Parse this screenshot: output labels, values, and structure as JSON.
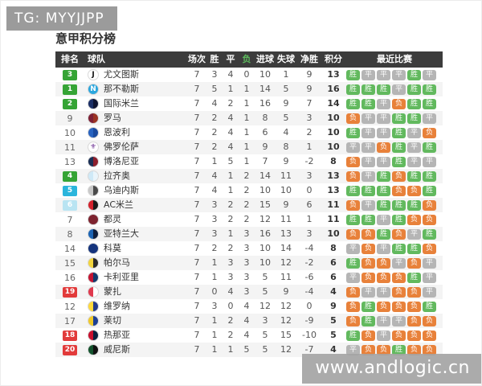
{
  "header": {
    "tag": "TG: MYYJJPP"
  },
  "title": "意甲积分榜",
  "watermark": "www.andlogic.cn",
  "table": {
    "columns": {
      "rank": "排名",
      "team": "球队",
      "played": "场次",
      "win": "胜",
      "draw": "平",
      "loss": "负",
      "gf": "进球",
      "ga": "失球",
      "gd": "净胜球",
      "pts": "积分",
      "recent": "最近比赛"
    },
    "result_colors": {
      "win": "#62b95e",
      "draw": "#b5b5b5",
      "loss": "#e8813a"
    },
    "result_keys": {
      "胜": "win",
      "平": "draw",
      "负": "loss"
    },
    "rank_colors": {
      "green": "#35a435",
      "cyan": "#2bb5dc",
      "pale": "#b9e4f2",
      "red": "#e23b3b",
      "none": ""
    },
    "rows": [
      {
        "rank": 3,
        "rank_style": "green",
        "team": "尤文图斯",
        "logo": {
          "c1": "#ffffff",
          "c2": "#ffffff",
          "letter": "J",
          "lc": "#111111"
        },
        "played": 7,
        "win": 3,
        "draw": 4,
        "loss": 0,
        "gf": 10,
        "ga": 1,
        "gd": 9,
        "pts": 13,
        "recent": [
          "胜",
          "平",
          "平",
          "平",
          "胜",
          "平"
        ]
      },
      {
        "rank": 1,
        "rank_style": "green",
        "team": "那不勒斯",
        "logo": {
          "c1": "#2ba7de",
          "c2": "#2ba7de",
          "letter": "N",
          "lc": "#ffffff"
        },
        "played": 7,
        "win": 5,
        "draw": 1,
        "loss": 1,
        "gf": 14,
        "ga": 5,
        "gd": 9,
        "pts": 16,
        "recent": [
          "胜",
          "胜",
          "胜",
          "平",
          "胜",
          "胜"
        ]
      },
      {
        "rank": 2,
        "rank_style": "green",
        "team": "国际米兰",
        "logo": {
          "c1": "#1b2f66",
          "c2": "#0e1430",
          "letter": "",
          "lc": "#ffffff"
        },
        "played": 7,
        "win": 4,
        "draw": 2,
        "loss": 1,
        "gf": 16,
        "ga": 9,
        "gd": 7,
        "pts": 14,
        "recent": [
          "胜",
          "胜",
          "平",
          "负",
          "胜",
          "胜"
        ]
      },
      {
        "rank": 9,
        "rank_style": "none",
        "team": "罗马",
        "logo": {
          "c1": "#7d2035",
          "c2": "#9a3324",
          "letter": "",
          "lc": "#ffffff"
        },
        "played": 7,
        "win": 2,
        "draw": 4,
        "loss": 1,
        "gf": 8,
        "ga": 5,
        "gd": 3,
        "pts": 10,
        "recent": [
          "负",
          "平",
          "平",
          "胜",
          "胜",
          "平"
        ]
      },
      {
        "rank": 10,
        "rank_style": "none",
        "team": "恩波利",
        "logo": {
          "c1": "#2863c0",
          "c2": "#1a4a9e",
          "letter": "",
          "lc": "#ffffff"
        },
        "played": 7,
        "win": 2,
        "draw": 4,
        "loss": 1,
        "gf": 6,
        "ga": 4,
        "gd": 2,
        "pts": 10,
        "recent": [
          "胜",
          "平",
          "平",
          "胜",
          "平",
          "负"
        ]
      },
      {
        "rank": 11,
        "rank_style": "none",
        "team": "佛罗伦萨",
        "logo": {
          "c1": "#ffffff",
          "c2": "#ffffff",
          "letter": "⚜",
          "lc": "#6a2d91"
        },
        "played": 7,
        "win": 2,
        "draw": 4,
        "loss": 1,
        "gf": 9,
        "ga": 8,
        "gd": 1,
        "pts": 10,
        "recent": [
          "平",
          "平",
          "负",
          "胜",
          "平",
          "胜"
        ]
      },
      {
        "rank": 13,
        "rank_style": "none",
        "team": "博洛尼亚",
        "logo": {
          "c1": "#1a2f55",
          "c2": "#8d1f2d",
          "letter": "",
          "lc": "#ffffff"
        },
        "played": 7,
        "win": 1,
        "draw": 5,
        "loss": 1,
        "gf": 7,
        "ga": 9,
        "gd": -2,
        "pts": 8,
        "recent": [
          "负",
          "平",
          "平",
          "胜",
          "平",
          "平"
        ]
      },
      {
        "rank": 4,
        "rank_style": "green",
        "team": "拉齐奥",
        "logo": {
          "c1": "#cfe9f7",
          "c2": "#eaf5fb",
          "letter": "",
          "lc": "#1b5e9e"
        },
        "played": 7,
        "win": 4,
        "draw": 1,
        "loss": 2,
        "gf": 14,
        "ga": 11,
        "gd": 3,
        "pts": 13,
        "recent": [
          "负",
          "平",
          "胜",
          "负",
          "胜",
          "胜"
        ]
      },
      {
        "rank": 5,
        "rank_style": "cyan",
        "team": "乌迪内斯",
        "logo": {
          "c1": "#c8c8c8",
          "c2": "#4a4a4a",
          "letter": "",
          "lc": "#ffffff"
        },
        "played": 7,
        "win": 4,
        "draw": 1,
        "loss": 2,
        "gf": 10,
        "ga": 10,
        "gd": 0,
        "pts": 13,
        "recent": [
          "胜",
          "胜",
          "胜",
          "负",
          "负",
          "胜"
        ]
      },
      {
        "rank": 6,
        "rank_style": "pale",
        "team": "AC米兰",
        "logo": {
          "c1": "#d3212c",
          "c2": "#1a1a1a",
          "letter": "",
          "lc": "#ffffff"
        },
        "played": 7,
        "win": 3,
        "draw": 2,
        "loss": 2,
        "gf": 15,
        "ga": 9,
        "gd": 6,
        "pts": 11,
        "recent": [
          "负",
          "平",
          "胜",
          "胜",
          "胜",
          "负"
        ]
      },
      {
        "rank": 7,
        "rank_style": "none",
        "team": "都灵",
        "logo": {
          "c1": "#7e2430",
          "c2": "#7e2430",
          "letter": "",
          "lc": "#ffffff"
        },
        "played": 7,
        "win": 3,
        "draw": 2,
        "loss": 2,
        "gf": 12,
        "ga": 11,
        "gd": 1,
        "pts": 11,
        "recent": [
          "胜",
          "胜",
          "平",
          "胜",
          "负",
          "负"
        ]
      },
      {
        "rank": 8,
        "rank_style": "none",
        "team": "亚特兰大",
        "logo": {
          "c1": "#1c64b4",
          "c2": "#0e1e3c",
          "letter": "",
          "lc": "#ffffff"
        },
        "played": 7,
        "win": 3,
        "draw": 1,
        "loss": 3,
        "gf": 16,
        "ga": 13,
        "gd": 3,
        "pts": 10,
        "recent": [
          "负",
          "负",
          "胜",
          "负",
          "平",
          "胜"
        ]
      },
      {
        "rank": 14,
        "rank_style": "none",
        "team": "科莫",
        "logo": {
          "c1": "#14337c",
          "c2": "#14337c",
          "letter": "",
          "lc": "#ffffff"
        },
        "played": 7,
        "win": 2,
        "draw": 2,
        "loss": 3,
        "gf": 10,
        "ga": 14,
        "gd": -4,
        "pts": 8,
        "recent": [
          "平",
          "负",
          "平",
          "胜",
          "胜",
          "负"
        ]
      },
      {
        "rank": 15,
        "rank_style": "none",
        "team": "帕尔马",
        "logo": {
          "c1": "#f2d43c",
          "c2": "#2a2a2a",
          "letter": "",
          "lc": "#ffffff"
        },
        "played": 7,
        "win": 1,
        "draw": 3,
        "loss": 3,
        "gf": 10,
        "ga": 12,
        "gd": -2,
        "pts": 6,
        "recent": [
          "胜",
          "负",
          "负",
          "平",
          "负",
          "平"
        ]
      },
      {
        "rank": 16,
        "rank_style": "none",
        "team": "卡利亚里",
        "logo": {
          "c1": "#c31432",
          "c2": "#123a6d",
          "letter": "",
          "lc": "#ffffff"
        },
        "played": 7,
        "win": 1,
        "draw": 3,
        "loss": 3,
        "gf": 5,
        "ga": 11,
        "gd": -6,
        "pts": 6,
        "recent": [
          "平",
          "负",
          "负",
          "负",
          "胜",
          "平"
        ]
      },
      {
        "rank": 19,
        "rank_style": "red",
        "team": "蒙扎",
        "logo": {
          "c1": "#e03a4e",
          "c2": "#ffffff",
          "letter": "",
          "lc": "#ffffff"
        },
        "played": 7,
        "win": 0,
        "draw": 4,
        "loss": 3,
        "gf": 5,
        "ga": 9,
        "gd": -4,
        "pts": 4,
        "recent": [
          "负",
          "平",
          "平",
          "负",
          "负",
          "平"
        ]
      },
      {
        "rank": 12,
        "rank_style": "none",
        "team": "维罗纳",
        "logo": {
          "c1": "#ffd93b",
          "c2": "#243b8c",
          "letter": "",
          "lc": "#ffffff"
        },
        "played": 7,
        "win": 3,
        "draw": 0,
        "loss": 4,
        "gf": 12,
        "ga": 12,
        "gd": 0,
        "pts": 9,
        "recent": [
          "负",
          "胜",
          "负",
          "负",
          "负",
          "胜"
        ]
      },
      {
        "rank": 17,
        "rank_style": "none",
        "team": "莱切",
        "logo": {
          "c1": "#f0c929",
          "c2": "#1c3f94",
          "letter": "",
          "lc": "#ffffff"
        },
        "played": 7,
        "win": 1,
        "draw": 2,
        "loss": 4,
        "gf": 3,
        "ga": 12,
        "gd": -9,
        "pts": 5,
        "recent": [
          "负",
          "胜",
          "平",
          "平",
          "负",
          "负"
        ]
      },
      {
        "rank": 18,
        "rank_style": "red",
        "team": "热那亚",
        "logo": {
          "c1": "#c8102e",
          "c2": "#0a2240",
          "letter": "",
          "lc": "#ffffff"
        },
        "played": 7,
        "win": 1,
        "draw": 2,
        "loss": 4,
        "gf": 5,
        "ga": 15,
        "gd": -10,
        "pts": 5,
        "recent": [
          "胜",
          "负",
          "平",
          "负",
          "负",
          "负"
        ]
      },
      {
        "rank": 20,
        "rank_style": "red",
        "team": "威尼斯",
        "logo": {
          "c1": "#14532d",
          "c2": "#111111",
          "letter": "",
          "lc": "#ffffff"
        },
        "played": 7,
        "win": 1,
        "draw": 1,
        "loss": 5,
        "gf": 5,
        "ga": 12,
        "gd": -7,
        "pts": 4,
        "recent": [
          "平",
          "负",
          "负",
          "胜",
          "负",
          "负"
        ]
      }
    ]
  }
}
